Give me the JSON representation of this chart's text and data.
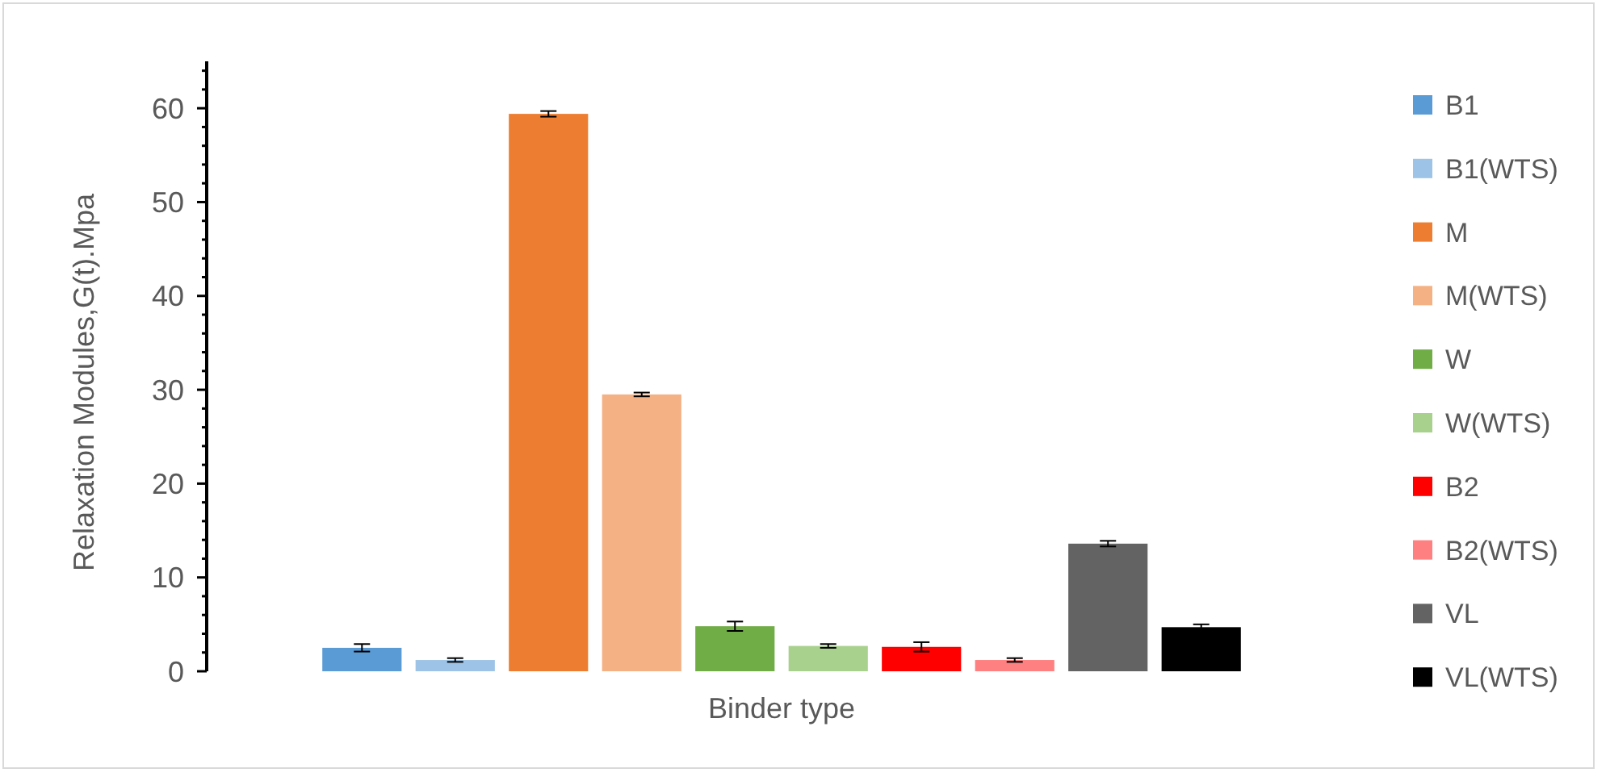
{
  "chart_data": {
    "type": "bar",
    "xlabel": "Binder type",
    "ylabel": "Relaxation Modules,G(t).Mpa",
    "categories": [
      null
    ],
    "ylim": [
      0,
      65
    ],
    "yticks": [
      0,
      {
        "value": 2,
        "label": null
      },
      {
        "value": 4,
        "label": null
      },
      {
        "value": 6,
        "label": null
      },
      {
        "value": 8,
        "label": null
      },
      10,
      {
        "value": 12,
        "label": null
      },
      {
        "value": 14,
        "label": null
      },
      {
        "value": 16,
        "label": null
      },
      {
        "value": 18,
        "label": null
      },
      20,
      {
        "value": 22,
        "label": null
      },
      {
        "value": 24,
        "label": null
      },
      {
        "value": 26,
        "label": null
      },
      {
        "value": 28,
        "label": null
      },
      30,
      {
        "value": 32,
        "label": null
      },
      {
        "value": 34,
        "label": null
      },
      {
        "value": 36,
        "label": null
      },
      {
        "value": 38,
        "label": null
      },
      40,
      {
        "value": 42,
        "label": null
      },
      {
        "value": 44,
        "label": null
      },
      {
        "value": 46,
        "label": null
      },
      {
        "value": 48,
        "label": null
      },
      50,
      {
        "value": 52,
        "label": null
      },
      {
        "value": 54,
        "label": null
      },
      {
        "value": 56,
        "label": null
      },
      {
        "value": 58,
        "label": null
      },
      60,
      {
        "value": 62,
        "label": null
      },
      {
        "value": 64,
        "label": null
      }
    ],
    "legend": "right",
    "series": [
      {
        "name": "B1",
        "color": "#5b9bd5",
        "values": [
          2.5
        ],
        "errors": [
          0.4
        ]
      },
      {
        "name": "B1(WTS)",
        "color": "#9dc3e6",
        "values": [
          1.2
        ],
        "errors": [
          0.2
        ]
      },
      {
        "name": "M",
        "color": "#ed7d31",
        "values": [
          59.4
        ],
        "errors": [
          0.3
        ]
      },
      {
        "name": "M(WTS)",
        "color": "#f4b183",
        "values": [
          29.5
        ],
        "errors": [
          0.2
        ]
      },
      {
        "name": "W",
        "color": "#70ad47",
        "values": [
          4.8
        ],
        "errors": [
          0.5
        ]
      },
      {
        "name": "W(WTS)",
        "color": "#a9d18e",
        "values": [
          2.7
        ],
        "errors": [
          0.2
        ]
      },
      {
        "name": "B2",
        "color": "#ff0000",
        "values": [
          2.6
        ],
        "errors": [
          0.5
        ]
      },
      {
        "name": "B2(WTS)",
        "color": "#ff8080",
        "values": [
          1.2
        ],
        "errors": [
          0.2
        ]
      },
      {
        "name": "VL",
        "color": "#636363",
        "values": [
          13.6
        ],
        "errors": [
          0.3
        ]
      },
      {
        "name": "VL(WTS)",
        "color": "#000000",
        "values": [
          4.7
        ],
        "errors": [
          0.3
        ]
      }
    ]
  }
}
